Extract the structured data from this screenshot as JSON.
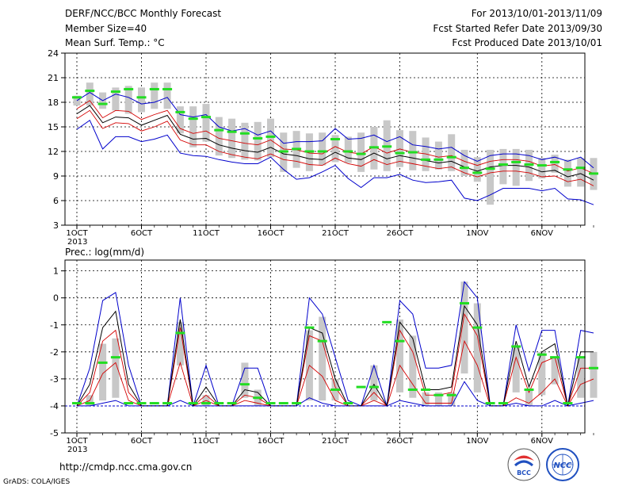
{
  "header": {
    "title": "DERF/NCC/BCC Monthly Forecast",
    "member": "Member Size=40",
    "variable": "Mean Surf. Temp.: °C",
    "period": "For 2013/10/01-2013/11/09",
    "refer": "Fcst Started Refer Date 2013/09/30",
    "produced": "Fcst Produced Date 2013/10/01"
  },
  "footer": {
    "url": "http://cmdp.ncc.cma.gov.cn",
    "grads": "GrADS: COLA/IGES"
  },
  "colors": {
    "blue": "#0000cc",
    "red": "#d40000",
    "green": "#22dd22",
    "box": "#c8c8c8",
    "black": "#000000"
  },
  "chart_data": [
    {
      "type": "line",
      "ylabel": "",
      "ylim": [
        3,
        24
      ],
      "yticks": [
        3,
        6,
        9,
        12,
        15,
        18,
        21,
        24
      ],
      "xticks": [
        {
          "index": 0,
          "label": "1OCT",
          "sub": "2013"
        },
        {
          "index": 5,
          "label": "6OCT"
        },
        {
          "index": 10,
          "label": "11OCT"
        },
        {
          "index": 15,
          "label": "16OCT"
        },
        {
          "index": 20,
          "label": "21OCT"
        },
        {
          "index": 25,
          "label": "26OCT"
        },
        {
          "index": 31,
          "label": "1NOV"
        },
        {
          "index": 36,
          "label": "6NOV"
        }
      ],
      "series": [
        {
          "role": "max",
          "values": [
            18.2,
            19.2,
            18.2,
            19.0,
            18.6,
            17.8,
            18.0,
            18.6,
            16.5,
            16.2,
            16.5,
            15.0,
            14.5,
            14.8,
            14.0,
            14.5,
            13.0,
            13.2,
            13.2,
            13.3,
            14.8,
            13.5,
            13.6,
            14.0,
            13.2,
            13.8,
            12.8,
            12.6,
            12.3,
            12.5,
            11.5,
            10.8,
            11.5,
            11.7,
            11.7,
            11.5,
            11.0,
            11.3,
            10.8,
            11.3,
            10.0
          ]
        },
        {
          "role": "upper",
          "values": [
            17.2,
            18.2,
            16.1,
            17.0,
            16.9,
            15.9,
            16.5,
            17.0,
            14.8,
            14.2,
            14.5,
            13.6,
            13.3,
            13.0,
            12.8,
            13.4,
            12.3,
            12.2,
            11.8,
            11.7,
            12.6,
            11.9,
            11.7,
            12.6,
            11.8,
            12.3,
            11.9,
            11.7,
            11.3,
            11.5,
            10.8,
            10.3,
            10.8,
            11.0,
            11.0,
            10.8,
            10.2,
            10.4,
            9.6,
            10.0,
            9.3
          ]
        },
        {
          "role": "mean",
          "values": [
            16.6,
            17.6,
            15.5,
            16.2,
            16.1,
            15.2,
            15.8,
            16.4,
            14.1,
            13.5,
            13.6,
            12.8,
            12.4,
            12.1,
            11.9,
            12.5,
            11.7,
            11.5,
            11.1,
            11.0,
            11.9,
            11.2,
            11.0,
            11.8,
            11.1,
            11.5,
            11.2,
            10.9,
            10.6,
            10.8,
            10.1,
            9.6,
            10.1,
            10.3,
            10.3,
            10.1,
            9.5,
            9.7,
            8.9,
            9.3,
            8.5
          ]
        },
        {
          "role": "lower",
          "values": [
            16.0,
            17.0,
            14.8,
            15.5,
            15.4,
            14.5,
            15.0,
            15.7,
            13.4,
            12.8,
            12.8,
            12.0,
            11.6,
            11.3,
            11.1,
            11.7,
            11.0,
            10.8,
            10.4,
            10.3,
            11.2,
            10.5,
            10.2,
            11.0,
            10.4,
            10.8,
            10.5,
            10.2,
            9.9,
            10.1,
            9.4,
            8.9,
            9.4,
            9.6,
            9.6,
            9.4,
            8.9,
            9.0,
            8.3,
            8.6,
            7.8
          ]
        },
        {
          "role": "min",
          "values": [
            14.7,
            15.8,
            12.3,
            13.8,
            13.8,
            13.2,
            13.5,
            14.0,
            11.8,
            11.5,
            11.4,
            11.0,
            10.7,
            10.5,
            10.5,
            11.3,
            9.8,
            8.6,
            8.8,
            9.5,
            10.3,
            8.7,
            7.6,
            8.8,
            8.8,
            9.2,
            8.5,
            8.2,
            8.3,
            8.5,
            6.3,
            6.0,
            6.7,
            7.5,
            7.5,
            7.5,
            7.2,
            7.5,
            6.2,
            6.1,
            5.5
          ]
        },
        {
          "role": "box_upper",
          "values": [
            18.8,
            20.4,
            19.2,
            19.8,
            20.0,
            19.8,
            20.4,
            20.4,
            17.5,
            17.5,
            17.8,
            16.2,
            16.0,
            15.5,
            15.6,
            16.0,
            14.3,
            14.5,
            14.2,
            14.3,
            14.0,
            13.8,
            14.3,
            15.0,
            15.8,
            14.6,
            14.5,
            13.7,
            13.2,
            14.1,
            12.2,
            11.3,
            12.2,
            12.3,
            12.3,
            12.2,
            11.2,
            11.6,
            11.0,
            11.2,
            11.2
          ]
        },
        {
          "role": "box_lower",
          "values": [
            17.6,
            17.6,
            17.2,
            17.0,
            16.6,
            16.8,
            17.2,
            17.2,
            14.2,
            12.5,
            13.2,
            11.5,
            11.2,
            11.0,
            10.9,
            11.3,
            9.5,
            10.0,
            9.6,
            10.3,
            10.7,
            10.6,
            9.5,
            9.8,
            9.6,
            10.1,
            9.7,
            9.6,
            9.8,
            9.6,
            9.0,
            8.3,
            5.5,
            8.0,
            7.8,
            8.4,
            8.7,
            9.4,
            7.7,
            7.7,
            7.3
          ]
        },
        {
          "role": "analog",
          "values": [
            18.6,
            19.4,
            17.8,
            19.3,
            19.6,
            18.6,
            19.6,
            19.6,
            16.8,
            16.0,
            16.2,
            14.6,
            14.4,
            14.2,
            13.6,
            13.8,
            12.0,
            12.3,
            12.0,
            12.0,
            13.5,
            12.0,
            11.7,
            12.5,
            12.6,
            11.8,
            11.9,
            11.0,
            11.0,
            11.3,
            10.0,
            9.4,
            9.9,
            10.4,
            10.7,
            10.4,
            10.3,
            10.7,
            9.8,
            10.0,
            9.3
          ]
        }
      ]
    },
    {
      "type": "line",
      "title": "Prec.: log(mm/d)",
      "ylim": [
        -5,
        1.4
      ],
      "yticks": [
        -5,
        -4,
        -3,
        -2,
        -1,
        0,
        1
      ],
      "xticks": [
        {
          "index": 0,
          "label": "1OCT",
          "sub": "2013"
        },
        {
          "index": 5,
          "label": "6OCT"
        },
        {
          "index": 10,
          "label": "11OCT"
        },
        {
          "index": 15,
          "label": "16OCT"
        },
        {
          "index": 20,
          "label": "21OCT"
        },
        {
          "index": 25,
          "label": "26OCT"
        },
        {
          "index": 31,
          "label": "1NOV"
        },
        {
          "index": 36,
          "label": "6NOV"
        }
      ],
      "series": [
        {
          "role": "max",
          "values": [
            -4,
            -2.6,
            -0.1,
            0.2,
            -2.5,
            -4,
            -4,
            -4,
            0.0,
            -4,
            -2.5,
            -4,
            -4,
            -2.6,
            -2.6,
            -4,
            -4,
            -4,
            0.0,
            -0.6,
            -2.2,
            -3.8,
            -4,
            -2.5,
            -4,
            -0.1,
            -0.6,
            -2.6,
            -2.6,
            -2.5,
            0.6,
            0.0,
            -4,
            -4,
            -1.0,
            -2.7,
            -1.2,
            -1.2,
            -4,
            -1.2,
            -1.3
          ]
        },
        {
          "role": "mean",
          "values": [
            -4,
            -3.2,
            -1.1,
            -0.5,
            -3.2,
            -4,
            -4,
            -4,
            -0.8,
            -4,
            -3.3,
            -4,
            -4,
            -3.4,
            -3.5,
            -4,
            -4,
            -4,
            -1.1,
            -1.3,
            -3.0,
            -4,
            -4,
            -3.2,
            -4,
            -0.9,
            -1.5,
            -3.4,
            -3.4,
            -3.3,
            -0.3,
            -1.0,
            -4,
            -4,
            -1.6,
            -3.3,
            -2.0,
            -1.7,
            -4,
            -2.0,
            -2.0
          ]
        },
        {
          "role": "upper",
          "values": [
            -4,
            -3.5,
            -1.6,
            -1.2,
            -3.5,
            -4,
            -4,
            -4,
            -1.1,
            -4,
            -3.6,
            -4,
            -4,
            -3.6,
            -3.7,
            -4,
            -4,
            -4,
            -1.4,
            -1.6,
            -3.3,
            -4,
            -4,
            -3.5,
            -4,
            -1.2,
            -2.0,
            -3.6,
            -3.6,
            -3.5,
            -0.6,
            -1.4,
            -4,
            -4,
            -2.2,
            -3.5,
            -2.4,
            -2.2,
            -4,
            -2.6,
            -2.6
          ]
        },
        {
          "role": "lower",
          "values": [
            -4,
            -3.8,
            -2.8,
            -2.4,
            -3.8,
            -4,
            -4,
            -4,
            -2.4,
            -4,
            -3.8,
            -4,
            -4,
            -3.8,
            -3.9,
            -4,
            -4,
            -4,
            -2.5,
            -2.9,
            -3.8,
            -4,
            -4,
            -3.8,
            -4,
            -2.5,
            -3.2,
            -3.9,
            -3.9,
            -3.9,
            -1.6,
            -2.5,
            -4,
            -4,
            -3.7,
            -3.9,
            -3.5,
            -3.0,
            -4,
            -3.2,
            -3.0
          ]
        },
        {
          "role": "min",
          "values": [
            -4,
            -4,
            -3.9,
            -3.8,
            -4,
            -4,
            -4,
            -4,
            -3.8,
            -4,
            -4,
            -4,
            -4,
            -4,
            -4,
            -4,
            -4,
            -4,
            -3.7,
            -3.9,
            -4,
            -4,
            -4,
            -4,
            -4,
            -3.8,
            -3.9,
            -4,
            -4,
            -4,
            -3.1,
            -3.8,
            -4,
            -4,
            -3.9,
            -4,
            -4,
            -3.8,
            -4,
            -3.9,
            -3.8
          ]
        },
        {
          "role": "box_upper",
          "values": [
            -4,
            -3.6,
            -1.7,
            -1.5,
            -4,
            -4,
            -4,
            -4,
            -0.9,
            -4,
            -3.6,
            -4,
            -4,
            -2.4,
            -3.4,
            -4,
            -4,
            -4,
            -1.2,
            -0.7,
            -3.0,
            -4,
            -4,
            -2.5,
            -4,
            -0.8,
            -1.4,
            -3.5,
            -3.5,
            -3.5,
            0.6,
            -0.2,
            -4,
            -4,
            -1.8,
            -3.4,
            -2.0,
            -2.2,
            -4,
            -2.2,
            -2.0
          ]
        },
        {
          "role": "box_lower",
          "values": [
            -4,
            -4,
            -3.8,
            -3.7,
            -4,
            -4,
            -4,
            -4,
            -2.5,
            -4,
            -4,
            -4,
            -4,
            -3.7,
            -4,
            -4,
            -4,
            -4,
            -3.8,
            -3.8,
            -3.8,
            -4,
            -4,
            -3.8,
            -4,
            -3.5,
            -3.7,
            -4,
            -4,
            -4,
            -2.8,
            -3.5,
            -4,
            -4,
            -3.5,
            -4,
            -3.6,
            -3.2,
            -4,
            -3.7,
            -3.7
          ]
        },
        {
          "role": "analog",
          "values": [
            -3.9,
            -3.9,
            -2.4,
            -2.2,
            -3.9,
            -3.9,
            -3.9,
            -3.9,
            -1.3,
            -3.9,
            -3.9,
            -3.9,
            -3.9,
            -3.2,
            -3.7,
            -3.9,
            -3.9,
            -3.9,
            -1.1,
            -1.6,
            -3.4,
            -3.9,
            -3.3,
            -3.3,
            -0.9,
            -1.6,
            -3.4,
            -3.4,
            -3.6,
            -3.6,
            -0.2,
            -1.1,
            -3.9,
            -3.9,
            -1.8,
            -3.4,
            -2.1,
            -2.2,
            -3.9,
            -2.2,
            -2.6
          ]
        }
      ]
    }
  ]
}
